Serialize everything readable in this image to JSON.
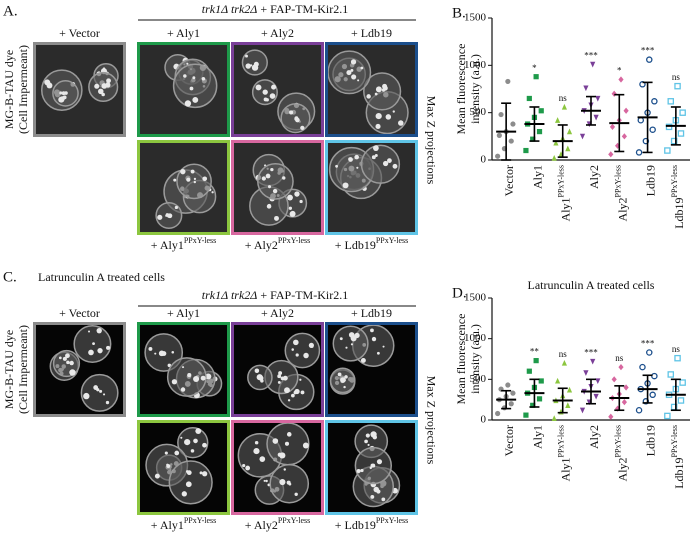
{
  "panel_a": {
    "label": "A.",
    "header_italic": "trk1Δ  trk2Δ",
    "header_rest": " + FAP-TM-Kir2.1",
    "columns": [
      "+ Vector",
      "+ Aly1",
      "+ Aly2",
      "+ Ldb19"
    ],
    "bottom_labels": [
      {
        "text": "+ Aly1",
        "sup": "PPxY-less"
      },
      {
        "text": "+ Aly2",
        "sup": "PPxY-less"
      },
      {
        "text": "+ Ldb19",
        "sup": "PPxY-less"
      }
    ],
    "side_label": [
      "MG-B-TAU dye",
      "(Cell Impermeant)"
    ],
    "right_label": "Max Z projections"
  },
  "panel_c": {
    "label": "C.",
    "subtitle": "Latrunculin A treated cells",
    "header_italic": "trk1Δ  trk2Δ",
    "header_rest": " + FAP-TM-Kir2.1",
    "columns": [
      "+ Vector",
      "+ Aly1",
      "+ Aly2",
      "+ Ldb19"
    ],
    "bottom_labels": [
      {
        "text": "+ Aly1",
        "sup": "PPxY-less"
      },
      {
        "text": "+ Aly2",
        "sup": "PPxY-less"
      },
      {
        "text": "+ Ldb19",
        "sup": "PPxY-less"
      }
    ],
    "side_label": [
      "MG-B-TAU dye",
      "(Cell Impermeant)"
    ],
    "right_label": "Max Z projections"
  },
  "chart_data": [
    {
      "type": "dotplot",
      "panel_label": "B.",
      "y_label": [
        "Mean fluorescence",
        "intensity (a.u.)"
      ],
      "categories": [
        "Vector",
        "Aly1",
        "Aly1",
        "Aly2",
        "Aly2",
        "Ldb19",
        "Ldb19"
      ],
      "category_superscripts": [
        null,
        null,
        "PPxY-less",
        null,
        "PPxY-less",
        null,
        "PPxY-less"
      ],
      "colors": [
        "#8c8c8c",
        "#1e9a4a",
        "#8cc63f",
        "#7a3f98",
        "#d7679f",
        "#1c4f8c",
        "#5fc4e6"
      ],
      "markers": [
        "circle",
        "square",
        "triangle",
        "triangle-down",
        "diamond",
        "circle-open",
        "square-open"
      ],
      "points": [
        [
          40,
          120,
          200,
          260,
          300,
          380,
          480,
          830
        ],
        [
          100,
          220,
          300,
          380,
          450,
          520,
          650,
          880
        ],
        [
          20,
          60,
          120,
          180,
          230,
          300,
          420,
          560
        ],
        [
          250,
          380,
          450,
          520,
          580,
          650,
          760,
          1010
        ],
        [
          60,
          150,
          250,
          350,
          420,
          520,
          700,
          850
        ],
        [
          80,
          200,
          320,
          420,
          500,
          620,
          800,
          1060
        ],
        [
          100,
          200,
          280,
          350,
          420,
          500,
          620,
          780
        ]
      ],
      "means": [
        300,
        380,
        200,
        520,
        390,
        450,
        360
      ],
      "sds": [
        300,
        180,
        170,
        150,
        300,
        370,
        200
      ],
      "significance": [
        null,
        "*",
        "ns",
        "***",
        "*",
        "***",
        "ns"
      ],
      "ylim": [
        0,
        1500
      ],
      "yticks": [
        0,
        500,
        1000,
        1500
      ]
    },
    {
      "type": "dotplot",
      "panel_label": "D.",
      "title": "Latrunculin A treated cells",
      "y_label": [
        "Mean fluorescence",
        "intensity (a.u.)"
      ],
      "categories": [
        "Vector",
        "Aly1",
        "Aly1",
        "Aly2",
        "Aly2",
        "Ldb19",
        "Ldb19"
      ],
      "category_superscripts": [
        null,
        null,
        "PPxY-less",
        null,
        "PPxY-less",
        null,
        "PPxY-less"
      ],
      "colors": [
        "#8c8c8c",
        "#1e9a4a",
        "#8cc63f",
        "#7a3f98",
        "#d7679f",
        "#1c4f8c",
        "#5fc4e6"
      ],
      "markers": [
        "circle",
        "square",
        "triangle",
        "triangle-down",
        "diamond",
        "circle-open",
        "square-open"
      ],
      "points": [
        [
          80,
          150,
          200,
          250,
          290,
          330,
          380,
          430
        ],
        [
          60,
          180,
          260,
          330,
          400,
          480,
          600,
          730
        ],
        [
          20,
          100,
          180,
          240,
          300,
          370,
          480,
          700
        ],
        [
          120,
          220,
          290,
          350,
          410,
          480,
          580,
          720
        ],
        [
          40,
          140,
          220,
          270,
          320,
          400,
          500,
          650
        ],
        [
          120,
          230,
          310,
          380,
          450,
          540,
          650,
          830
        ],
        [
          50,
          160,
          240,
          310,
          380,
          460,
          560,
          760
        ]
      ],
      "means": [
        250,
        330,
        240,
        350,
        270,
        380,
        310
      ],
      "sds": [
        110,
        170,
        150,
        150,
        150,
        170,
        190
      ],
      "significance": [
        null,
        "**",
        "ns",
        "***",
        "ns",
        "***",
        "ns"
      ],
      "ylim": [
        0,
        1500
      ],
      "yticks": [
        0,
        500,
        1000,
        1500
      ]
    }
  ]
}
